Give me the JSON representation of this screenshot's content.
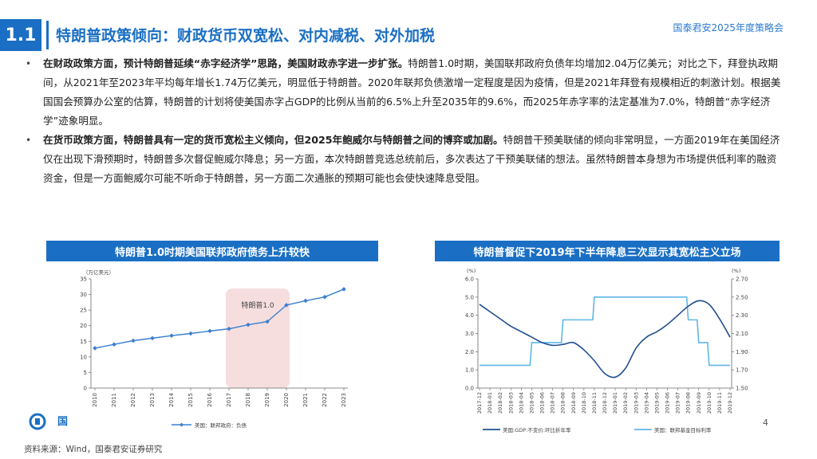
{
  "header": {
    "section_number": "1.1",
    "title": "特朗普政策倾向：财政货币双宽松、对内减税、对外加税",
    "event_name": "国泰君安2025年度策略会"
  },
  "body": {
    "paragraph1_bold": "在财政政策方面，预计特朗普延续“赤字经济学”思路，美国财政赤字进一步扩张。",
    "paragraph1_text": "特朗普1.0时期，美国联邦政府负债年均增加2.04万亿美元；对比之下，拜登执政期间，从2021年至2023年平均每年增长1.74万亿美元，明显低于特朗普。2020年联邦负债激增一定程度是因为疫情，但是2021年拜登有规模相近的刺激计划。根据美国国会预算办公室的估算，特朗普的计划将使美国赤字占GDP的比例从当前的6.5%上升至2035年的9.6%，而2025年赤字率的法定基准为7.0%，特朗普“赤字经济学”迹象明显。",
    "paragraph2_bold": "在货币政策方面，特朗普具有一定的货币宽松主义倾向，但2025年鲍威尔与特朗普之间的博弈或加剧。",
    "paragraph2_text": "特朗普干预美联储的倾向非常明显，一方面2019年在美国经济仅在出现下滑预期时，特朗普多次督促鲍威尔降息；另一方面，本次特朗普竞选总统前后，多次表达了干预美联储的想法。虽然特朗普本身想为市场提供低利率的融资资金，但是一方面鲍威尔可能不听命于特朗普，另一方面二次通胀的预期可能也会使快速降息受阻。"
  },
  "left_chart": {
    "panel_title": "特朗普1.0时期美国联邦政府债务上升较快",
    "unit_label": "（万亿美元）",
    "annotation": "特朗普1.0",
    "legend": "美国：联邦政府：负债",
    "colors": {
      "line": "#3a7fcf",
      "highlight": "#f6dede"
    }
  },
  "right_chart": {
    "panel_title": "特朗普督促下2019年下半年降息三次显示其宽松主义立场",
    "left_unit": "(%)",
    "right_unit": "(%)",
    "legend_left": "美国:GDP:不变价:环比折年率",
    "legend_right": "美国：联邦基金目标利率",
    "colors": {
      "gdp": "#1f4f8f",
      "rate": "#5fb6e8"
    }
  },
  "chart_data": [
    {
      "type": "line",
      "title": "特朗普1.0时期美国联邦政府债务上升较快",
      "x": [
        "2010",
        "2011",
        "2012",
        "2013",
        "2014",
        "2015",
        "2016",
        "2017",
        "2018",
        "2019",
        "2020",
        "2021",
        "2022",
        "2023"
      ],
      "series": [
        {
          "name": "美国：联邦政府：负债",
          "values": [
            12.8,
            14.0,
            15.2,
            16.0,
            16.8,
            17.5,
            18.3,
            19.0,
            20.3,
            21.3,
            26.6,
            28.0,
            29.2,
            31.7
          ]
        }
      ],
      "ylabel": "（万亿美元）",
      "ylim": [
        0,
        35
      ],
      "yticks": [
        "0",
        "5",
        "10",
        "15",
        "20",
        "25",
        "30",
        "35"
      ],
      "highlight": {
        "from": "2017",
        "to": "2020",
        "label": "特朗普1.0"
      },
      "legend_position": "bottom"
    },
    {
      "type": "line",
      "title": "特朗普督促下2019年下半年降息三次显示其宽松主义立场",
      "x": [
        "2017-12",
        "2018-01",
        "2018-02",
        "2018-03",
        "2018-04",
        "2018-05",
        "2018-06",
        "2018-07",
        "2018-08",
        "2018-09",
        "2018-10",
        "2018-11",
        "2018-12",
        "2019-01",
        "2019-02",
        "2019-03",
        "2019-04",
        "2019-05",
        "2019-06",
        "2019-07",
        "2019-08",
        "2019-09",
        "2019-10",
        "2019-11",
        "2019-12"
      ],
      "series": [
        {
          "name": "美国:GDP:不变价:环比折年率",
          "axis": "left",
          "values": [
            4.6,
            4.2,
            3.8,
            3.4,
            3.1,
            2.8,
            2.5,
            2.35,
            2.4,
            2.5,
            2.1,
            1.5,
            0.8,
            0.6,
            1.1,
            2.2,
            2.8,
            3.1,
            3.5,
            4.0,
            4.5,
            4.8,
            4.6,
            3.8,
            2.8
          ]
        },
        {
          "name": "美国：联邦基金目标利率",
          "axis": "right",
          "values": [
            1.75,
            1.75,
            1.75,
            1.75,
            1.75,
            2.0,
            2.0,
            2.0,
            2.25,
            2.25,
            2.25,
            2.5,
            2.5,
            2.5,
            2.5,
            2.5,
            2.5,
            2.5,
            2.5,
            2.5,
            2.25,
            2.0,
            1.75,
            1.75,
            1.75
          ]
        }
      ],
      "ylim_left": [
        0,
        6
      ],
      "yticks_left": [
        "0.0",
        "1.0",
        "2.0",
        "3.0",
        "4.0",
        "5.0",
        "6.0"
      ],
      "ylim_right": [
        1.5,
        2.7
      ],
      "yticks_right": [
        "1.50",
        "1.70",
        "1.90",
        "2.10",
        "2.30",
        "2.50",
        "2.70"
      ],
      "legend_position": "bottom"
    }
  ],
  "footer": {
    "logo_text": "国",
    "page_number": "4",
    "source": "资料来源：Wind，国泰君安证券研究"
  }
}
